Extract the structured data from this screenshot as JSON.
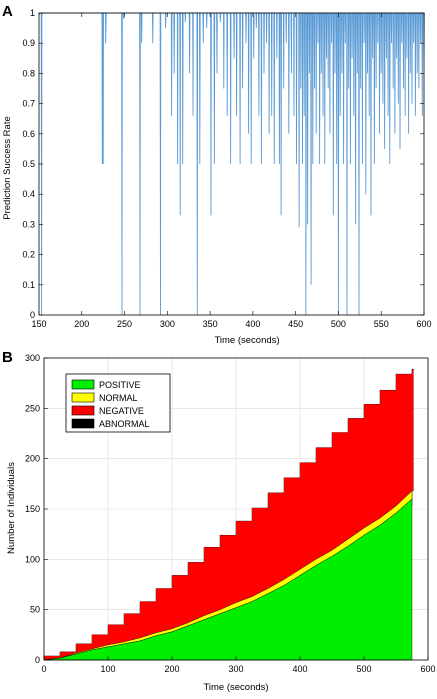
{
  "panels": [
    {
      "label": "A",
      "chart_data": {
        "type": "line",
        "xlabel": "Time (seconds)",
        "ylabel": "Prediction Success Rate",
        "xlim": [
          150,
          600
        ],
        "ylim": [
          0,
          1
        ],
        "xticks": [
          150,
          200,
          250,
          300,
          350,
          400,
          450,
          500,
          550,
          600
        ],
        "yticks": [
          0,
          0.1,
          0.2,
          0.3,
          0.4,
          0.5,
          0.6,
          0.7,
          0.8,
          0.9,
          1
        ],
        "grid": false,
        "series_color": "#5B9BD5",
        "baseline": 1,
        "dips": [
          [
            153,
            0
          ],
          [
            224,
            0.5
          ],
          [
            225,
            0.5
          ],
          [
            228,
            0.9
          ],
          [
            247,
            0
          ],
          [
            249,
            0.98
          ],
          [
            268,
            0
          ],
          [
            270,
            0.9
          ],
          [
            283,
            0.9
          ],
          [
            292,
            0
          ],
          [
            298,
            0.95
          ],
          [
            305,
            0.66
          ],
          [
            308,
            0.8
          ],
          [
            312,
            0.5
          ],
          [
            315,
            0.33
          ],
          [
            318,
            0.5
          ],
          [
            321,
            0.97
          ],
          [
            326,
            0.8
          ],
          [
            330,
            0.66
          ],
          [
            335,
            0
          ],
          [
            338,
            0.5
          ],
          [
            342,
            0.9
          ],
          [
            346,
            0.95
          ],
          [
            351,
            0.33
          ],
          [
            355,
            0.5
          ],
          [
            358,
            0.8
          ],
          [
            362,
            0.97
          ],
          [
            366,
            0.75
          ],
          [
            370,
            0.66
          ],
          [
            374,
            0.5
          ],
          [
            378,
            0.85
          ],
          [
            381,
            0.66
          ],
          [
            385,
            0.5
          ],
          [
            388,
            0.75
          ],
          [
            392,
            0.9
          ],
          [
            395,
            0.6
          ],
          [
            398,
            0.5
          ],
          [
            401,
            0.85
          ],
          [
            404,
            0.95
          ],
          [
            407,
            0.66
          ],
          [
            410,
            0.5
          ],
          [
            413,
            0.8
          ],
          [
            416,
            0.9
          ],
          [
            419,
            0.6
          ],
          [
            422,
            0.66
          ],
          [
            425,
            0.5
          ],
          [
            428,
            0.85
          ],
          [
            431,
            0.5
          ],
          [
            433,
            0.33
          ],
          [
            436,
            0.75
          ],
          [
            439,
            0.9
          ],
          [
            442,
            0.6
          ],
          [
            445,
            0.8
          ],
          [
            448,
            0.66
          ],
          [
            451,
            0.5
          ],
          [
            454,
            0.29
          ],
          [
            456,
            0.75
          ],
          [
            458,
            0.5
          ],
          [
            460,
            0.66
          ],
          [
            462,
            0
          ],
          [
            464,
            0.3
          ],
          [
            466,
            0.8
          ],
          [
            468,
            0.1
          ],
          [
            470,
            0.5
          ],
          [
            472,
            0.75
          ],
          [
            474,
            0.6
          ],
          [
            476,
            0.9
          ],
          [
            478,
            0.5
          ],
          [
            480,
            0.8
          ],
          [
            482,
            0.66
          ],
          [
            484,
            0.5
          ],
          [
            486,
            0.85
          ],
          [
            488,
            0.75
          ],
          [
            490,
            0.6
          ],
          [
            492,
            0.9
          ],
          [
            494,
            0.33
          ],
          [
            496,
            0.8
          ],
          [
            498,
            0.5
          ],
          [
            500,
            0
          ],
          [
            502,
            0.66
          ],
          [
            504,
            0.8
          ],
          [
            506,
            0.5
          ],
          [
            508,
            0.9
          ],
          [
            510,
            0
          ],
          [
            512,
            0.75
          ],
          [
            514,
            0.5
          ],
          [
            516,
            0.85
          ],
          [
            518,
            0.66
          ],
          [
            520,
            0.3
          ],
          [
            522,
            0.8
          ],
          [
            524,
            0
          ],
          [
            526,
            0.75
          ],
          [
            528,
            0.5
          ],
          [
            530,
            0.9
          ],
          [
            532,
            0.4
          ],
          [
            534,
            0.8
          ],
          [
            536,
            0.66
          ],
          [
            538,
            0.33
          ],
          [
            540,
            0.85
          ],
          [
            542,
            0.5
          ],
          [
            544,
            0.75
          ],
          [
            546,
            0.9
          ],
          [
            548,
            0.6
          ],
          [
            550,
            0.8
          ],
          [
            552,
            0.7
          ],
          [
            554,
            0.55
          ],
          [
            556,
            0.85
          ],
          [
            558,
            0.66
          ],
          [
            560,
            0.5
          ],
          [
            562,
            0.9
          ],
          [
            564,
            0.75
          ],
          [
            566,
            0.6
          ],
          [
            568,
            0.85
          ],
          [
            570,
            0.7
          ],
          [
            572,
            0.55
          ],
          [
            574,
            0.9
          ],
          [
            576,
            0.75
          ],
          [
            578,
            0.66
          ],
          [
            580,
            0.85
          ],
          [
            582,
            0.6
          ],
          [
            584,
            0.8
          ],
          [
            586,
            0.7
          ],
          [
            588,
            0.9
          ],
          [
            590,
            0.66
          ],
          [
            592,
            0.8
          ],
          [
            594,
            0.75
          ],
          [
            596,
            0.9
          ],
          [
            598,
            0.66
          ],
          [
            600,
            0.85
          ]
        ]
      }
    },
    {
      "label": "B",
      "chart_data": {
        "type": "area",
        "stacked": true,
        "xlabel": "Time (seconds)",
        "ylabel": "Number of Individuals",
        "xlim": [
          0,
          600
        ],
        "ylim": [
          0,
          300
        ],
        "xticks": [
          0,
          100,
          200,
          300,
          400,
          500,
          600
        ],
        "yticks": [
          0,
          50,
          100,
          150,
          200,
          250,
          300
        ],
        "grid": true,
        "legend_position": "top-left",
        "series": [
          {
            "name": "POSITIVE",
            "color": "#00EE00"
          },
          {
            "name": "NORMAL",
            "color": "#FFFF00"
          },
          {
            "name": "NEGATIVE",
            "color": "#FF0000"
          },
          {
            "name": "ABNORMAL",
            "color": "#000000"
          }
        ],
        "x": [
          0,
          25,
          50,
          75,
          100,
          125,
          150,
          175,
          200,
          225,
          250,
          275,
          300,
          325,
          350,
          375,
          400,
          425,
          450,
          475,
          500,
          525,
          550,
          575
        ],
        "positive": [
          0,
          2,
          6,
          10,
          13,
          16,
          19,
          24,
          28,
          34,
          40,
          46,
          52,
          58,
          66,
          74,
          84,
          94,
          103,
          113,
          124,
          134,
          146,
          160
        ],
        "normal": [
          0,
          0,
          1,
          1,
          2,
          2,
          3,
          3,
          3,
          3,
          4,
          4,
          5,
          5,
          5,
          6,
          6,
          6,
          6,
          7,
          7,
          7,
          7,
          8
        ],
        "negative": [
          4,
          6,
          9,
          14,
          20,
          28,
          36,
          44,
          53,
          60,
          68,
          74,
          81,
          88,
          95,
          101,
          106,
          111,
          117,
          120,
          123,
          127,
          131,
          120
        ],
        "abnormal": [
          0,
          0,
          0,
          0,
          0,
          0,
          0,
          0,
          0,
          0,
          0,
          0,
          0,
          0,
          0,
          0,
          0,
          0,
          0,
          0,
          0,
          0,
          0,
          1
        ]
      }
    }
  ]
}
